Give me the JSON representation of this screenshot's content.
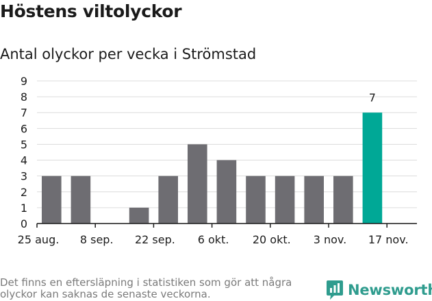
{
  "chart_data": {
    "type": "bar",
    "title": "Höstens viltolyckor",
    "subtitle": "Antal olyckor per vecka i Strömstad",
    "xlabel": "",
    "ylabel": "",
    "ylim": [
      0,
      9
    ],
    "yticks": [
      "0",
      "1",
      "2",
      "3",
      "4",
      "5",
      "6",
      "7",
      "8",
      "9"
    ],
    "grid": true,
    "weeks": 13,
    "values": [
      3,
      3,
      0,
      1,
      3,
      5,
      4,
      3,
      3,
      3,
      3,
      7
    ],
    "highlight_index": 11,
    "highlight_label": "7",
    "xtick_labels": [
      {
        "label": "25 aug.",
        "week": 0
      },
      {
        "label": "8 sep.",
        "week": 2
      },
      {
        "label": "22 sep.",
        "week": 4
      },
      {
        "label": "6 okt.",
        "week": 6
      },
      {
        "label": "20 okt.",
        "week": 8
      },
      {
        "label": "3 nov.",
        "week": 10
      },
      {
        "label": "17 nov.",
        "week": 12
      }
    ],
    "colors": {
      "bar": "#6e6d72",
      "highlight": "#00a896",
      "grid": "#dcdcdc",
      "axis": "#1a1a1a"
    }
  },
  "footnote": "Det finns en eftersläpning i statistiken som gör att några olyckor kan saknas de senaste veckorna.",
  "brand": {
    "name": "Newsworthy",
    "icon": "newsworthy-logo-icon",
    "color": "#2f9c8e"
  }
}
